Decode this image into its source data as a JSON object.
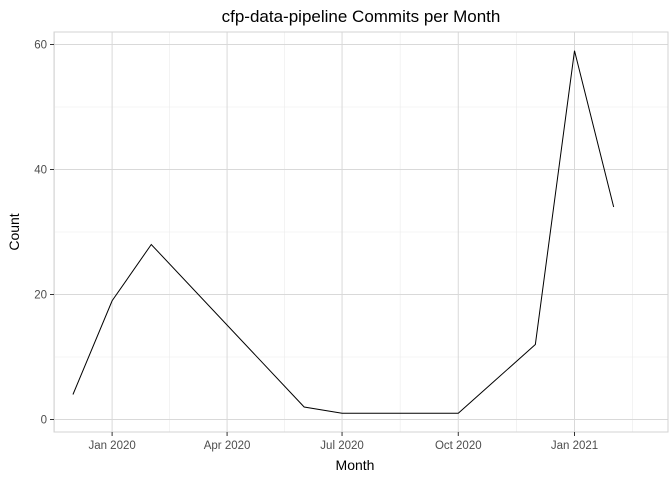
{
  "chart_data": {
    "type": "line",
    "title": "cfp-data-pipeline Commits per Month",
    "xlabel": "Month",
    "ylabel": "Count",
    "x_axis_type": "date",
    "xlim": [
      "2019-11-16",
      "2021-03-16"
    ],
    "ylim": [
      -2,
      62
    ],
    "x_ticks": [
      {
        "value": "2020-01-01",
        "label": "Jan 2020"
      },
      {
        "value": "2020-04-01",
        "label": "Apr 2020"
      },
      {
        "value": "2020-07-01",
        "label": "Jul 2020"
      },
      {
        "value": "2020-10-01",
        "label": "Oct 2020"
      },
      {
        "value": "2021-01-01",
        "label": "Jan 2021"
      }
    ],
    "y_ticks": [
      0,
      20,
      40,
      60
    ],
    "grid": true,
    "line_color": "#000000",
    "series": [
      {
        "points": [
          {
            "x": "2019-12-01",
            "y": 4
          },
          {
            "x": "2020-01-01",
            "y": 19
          },
          {
            "x": "2020-02-01",
            "y": 28
          },
          {
            "x": "2020-06-01",
            "y": 2
          },
          {
            "x": "2020-07-01",
            "y": 1
          },
          {
            "x": "2020-10-01",
            "y": 1
          },
          {
            "x": "2020-12-01",
            "y": 12
          },
          {
            "x": "2021-01-01",
            "y": 59
          },
          {
            "x": "2021-02-01",
            "y": 34
          }
        ]
      }
    ]
  }
}
